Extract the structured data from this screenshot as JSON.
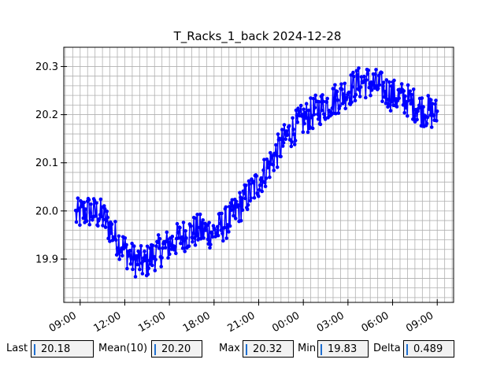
{
  "chart_data": {
    "type": "line",
    "title": "T_Racks_1_back 2024-12-28",
    "xlabel": "",
    "ylabel": "",
    "x_ticks": [
      "09:00",
      "12:00",
      "15:00",
      "18:00",
      "21:00",
      "00:00",
      "03:00",
      "06:00",
      "09:00"
    ],
    "x_tick_hours": [
      9,
      12,
      15,
      18,
      21,
      24,
      27,
      30,
      33
    ],
    "y_ticks": [
      "19.9",
      "20.0",
      "20.1",
      "20.2",
      "20.3"
    ],
    "y_tick_values": [
      19.9,
      20.0,
      20.1,
      20.2,
      20.3
    ],
    "xlim": [
      7.9,
      34.1
    ],
    "ylim": [
      19.81,
      20.34
    ],
    "grid": true,
    "series": [
      {
        "color": "#0000ff",
        "marker": "circle",
        "x_start_hour": 8.7,
        "x_end_hour": 33.0,
        "trend": [
          [
            8.7,
            19.99
          ],
          [
            9.5,
            20.0
          ],
          [
            10.5,
            19.99
          ],
          [
            11.5,
            19.94
          ],
          [
            12.5,
            19.9
          ],
          [
            13.3,
            19.89
          ],
          [
            14.0,
            19.91
          ],
          [
            15.0,
            19.93
          ],
          [
            16.0,
            19.95
          ],
          [
            17.0,
            19.96
          ],
          [
            18.0,
            19.955
          ],
          [
            19.0,
            19.98
          ],
          [
            20.0,
            20.02
          ],
          [
            21.0,
            20.06
          ],
          [
            22.0,
            20.11
          ],
          [
            23.0,
            20.16
          ],
          [
            24.0,
            20.19
          ],
          [
            25.0,
            20.21
          ],
          [
            26.0,
            20.23
          ],
          [
            27.0,
            20.25
          ],
          [
            28.0,
            20.27
          ],
          [
            29.0,
            20.26
          ],
          [
            30.0,
            20.24
          ],
          [
            31.0,
            20.23
          ],
          [
            32.0,
            20.21
          ],
          [
            33.0,
            20.2
          ]
        ],
        "noise_amplitude": 0.035
      }
    ]
  },
  "stats": {
    "last_label": "Last",
    "last_value": "20.18",
    "mean_label": "Mean(10)",
    "mean_value": "20.20",
    "max_label": "Max",
    "max_value": "20.32",
    "min_label": "Min",
    "min_value": "19.83",
    "delta_label": "Delta",
    "delta_value": "0.489"
  }
}
